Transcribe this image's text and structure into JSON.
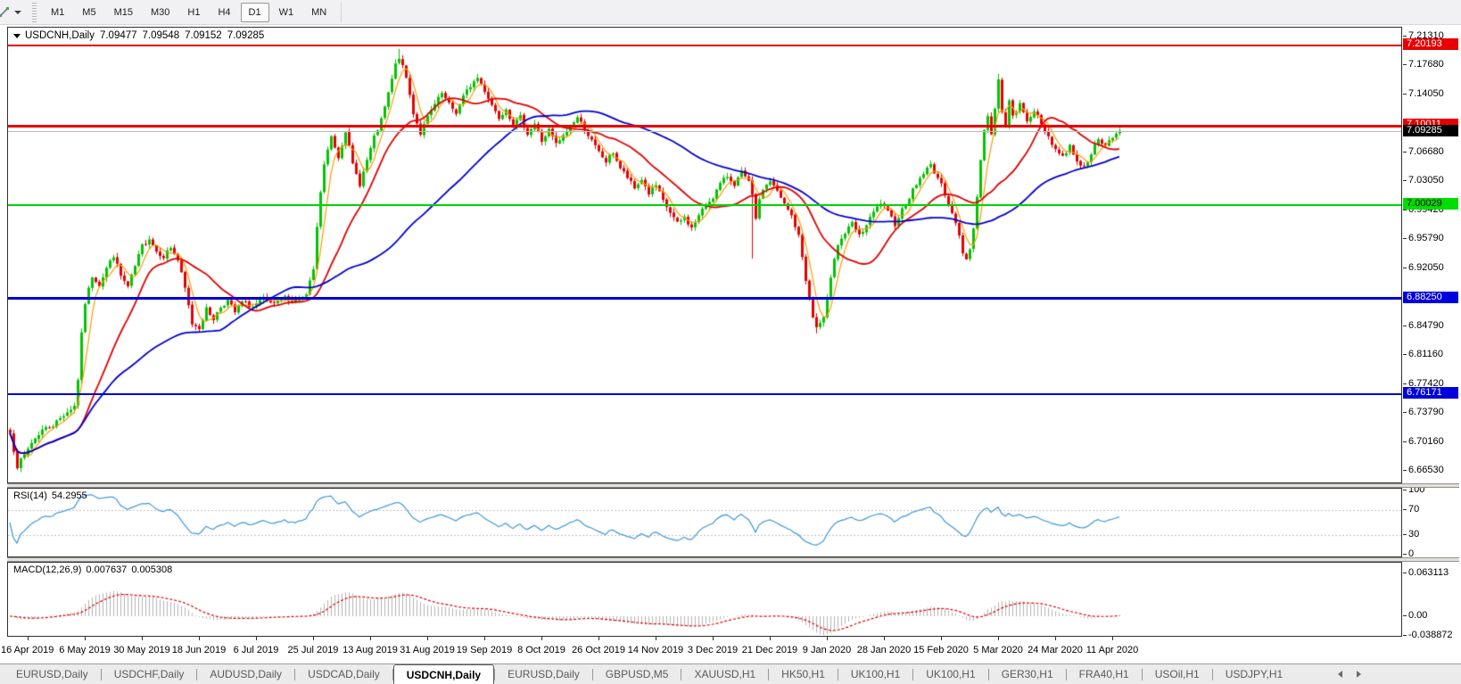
{
  "toolbar": {
    "tool_icon": "crosshair-cursor-icon",
    "timeframes": [
      "M1",
      "M5",
      "M15",
      "M30",
      "H1",
      "H4",
      "D1",
      "W1",
      "MN"
    ],
    "active_timeframe": "D1"
  },
  "chart": {
    "title": "USDCNH,Daily",
    "ohlc": {
      "open": "7.09477",
      "high": "7.09548",
      "low": "7.09152",
      "close": "7.09285"
    },
    "price_axis": {
      "min": 6.6653,
      "max": 7.2131,
      "ticks": [
        {
          "text": "7.21310",
          "value": 7.2131
        },
        {
          "text": "7.17680",
          "value": 7.1768
        },
        {
          "text": "7.14050",
          "value": 7.1405
        },
        {
          "text": "7.06680",
          "value": 7.0668
        },
        {
          "text": "7.03050",
          "value": 7.0305
        },
        {
          "text": "6.99420",
          "value": 6.9942
        },
        {
          "text": "6.95790",
          "value": 6.9579
        },
        {
          "text": "6.92050",
          "value": 6.9205
        },
        {
          "text": "6.84790",
          "value": 6.8479
        },
        {
          "text": "6.81160",
          "value": 6.8116
        },
        {
          "text": "6.77420",
          "value": 6.7742
        },
        {
          "text": "6.73790",
          "value": 6.7379
        },
        {
          "text": "6.70160",
          "value": 6.7016
        },
        {
          "text": "6.66530",
          "value": 6.6653
        }
      ],
      "badges": [
        {
          "text": "7.20193",
          "value": 7.20193,
          "bg": "#e80000",
          "fg": "#ffffff",
          "name": "resistance-badge-7.20193"
        },
        {
          "text": "7.10011",
          "value": 7.10011,
          "bg": "#e80000",
          "fg": "#ffffff",
          "name": "resistance-badge-7.10011"
        },
        {
          "text": "7.09285",
          "value": 7.09285,
          "bg": "#000000",
          "fg": "#ffffff",
          "name": "bid-price-badge"
        },
        {
          "text": "7.00029",
          "value": 7.00029,
          "bg": "#00dd00",
          "fg": "#000000",
          "name": "support-badge-7.00029"
        },
        {
          "text": "6.88250",
          "value": 6.8825,
          "bg": "#0000dd",
          "fg": "#ffffff",
          "name": "support-badge-6.88250"
        },
        {
          "text": "6.76171",
          "value": 6.76171,
          "bg": "#0000dd",
          "fg": "#ffffff",
          "name": "support-badge-6.76171"
        }
      ]
    },
    "hlines": [
      {
        "price": 7.20193,
        "color": "#e80000",
        "width": 2,
        "name": "hline-resistance-7.20193"
      },
      {
        "price": 7.10011,
        "color": "#e80000",
        "width": 3,
        "name": "hline-resistance-7.10011"
      },
      {
        "price": 7.09285,
        "color": "#b9b9b9",
        "width": 1,
        "name": "hline-bid-price"
      },
      {
        "price": 7.00029,
        "color": "#00d400",
        "width": 2,
        "name": "hline-support-7.00029"
      },
      {
        "price": 6.8825,
        "color": "#0000d8",
        "width": 3,
        "name": "hline-support-6.88250"
      },
      {
        "price": 6.76171,
        "color": "#0000d8",
        "width": 2,
        "name": "hline-support-6.76171"
      }
    ],
    "date_ticks": [
      "16 Apr 2019",
      "6 May 2019",
      "30 May 2019",
      "18 Jun 2019",
      "6 Jul 2019",
      "25 Jul 2019",
      "13 Aug 2019",
      "31 Aug 2019",
      "19 Sep 2019",
      "8 Oct 2019",
      "26 Oct 2019",
      "14 Nov 2019",
      "3 Dec 2019",
      "21 Dec 2019",
      "9 Jan 2020",
      "28 Jan 2020",
      "15 Feb 2020",
      "5 Mar 2020",
      "24 Mar 2020",
      "11 Apr 2020"
    ],
    "colors": {
      "up_candle": "#00c400",
      "down_candle": "#e60000",
      "ma_fast": "#ff9900",
      "ma_medium": "#e00000",
      "ma_slow": "#0000cc",
      "rsi_line": "#3d96dd",
      "level_dashed": "#c0c0c0",
      "macd_histogram": "#b2b2b2",
      "macd_signal": "#e00000"
    }
  },
  "chart_data": {
    "type": "candlestick",
    "symbol": "USDCNH",
    "period": "Daily",
    "bars_count": 312,
    "price_range": [
      6.6653,
      7.2131
    ],
    "close_anchors": [
      [
        0,
        6.712
      ],
      [
        2,
        6.67
      ],
      [
        4,
        6.684
      ],
      [
        6,
        6.7
      ],
      [
        9,
        6.716
      ],
      [
        12,
        6.722
      ],
      [
        15,
        6.735
      ],
      [
        18,
        6.746
      ],
      [
        19,
        6.78
      ],
      [
        20,
        6.836
      ],
      [
        21,
        6.876
      ],
      [
        23,
        6.91
      ],
      [
        25,
        6.899
      ],
      [
        27,
        6.92
      ],
      [
        29,
        6.936
      ],
      [
        31,
        6.91
      ],
      [
        33,
        6.896
      ],
      [
        35,
        6.922
      ],
      [
        37,
        6.948
      ],
      [
        39,
        6.958
      ],
      [
        41,
        6.941
      ],
      [
        43,
        6.935
      ],
      [
        45,
        6.946
      ],
      [
        47,
        6.93
      ],
      [
        49,
        6.894
      ],
      [
        51,
        6.85
      ],
      [
        53,
        6.845
      ],
      [
        55,
        6.868
      ],
      [
        57,
        6.856
      ],
      [
        59,
        6.871
      ],
      [
        61,
        6.879
      ],
      [
        63,
        6.864
      ],
      [
        65,
        6.877
      ],
      [
        68,
        6.871
      ],
      [
        71,
        6.881
      ],
      [
        74,
        6.873
      ],
      [
        77,
        6.883
      ],
      [
        80,
        6.879
      ],
      [
        83,
        6.885
      ],
      [
        85,
        6.918
      ],
      [
        86,
        6.97
      ],
      [
        87,
        7.016
      ],
      [
        88,
        7.05
      ],
      [
        90,
        7.086
      ],
      [
        92,
        7.06
      ],
      [
        94,
        7.094
      ],
      [
        96,
        7.05
      ],
      [
        98,
        7.026
      ],
      [
        100,
        7.056
      ],
      [
        102,
        7.084
      ],
      [
        104,
        7.106
      ],
      [
        106,
        7.14
      ],
      [
        108,
        7.176
      ],
      [
        109,
        7.186
      ],
      [
        111,
        7.16
      ],
      [
        113,
        7.116
      ],
      [
        115,
        7.09
      ],
      [
        117,
        7.11
      ],
      [
        119,
        7.126
      ],
      [
        121,
        7.14
      ],
      [
        123,
        7.126
      ],
      [
        125,
        7.116
      ],
      [
        127,
        7.136
      ],
      [
        129,
        7.15
      ],
      [
        131,
        7.16
      ],
      [
        133,
        7.144
      ],
      [
        135,
        7.126
      ],
      [
        137,
        7.11
      ],
      [
        139,
        7.122
      ],
      [
        141,
        7.1
      ],
      [
        143,
        7.11
      ],
      [
        145,
        7.09
      ],
      [
        147,
        7.102
      ],
      [
        149,
        7.08
      ],
      [
        151,
        7.094
      ],
      [
        153,
        7.076
      ],
      [
        155,
        7.086
      ],
      [
        157,
        7.1
      ],
      [
        159,
        7.11
      ],
      [
        161,
        7.096
      ],
      [
        163,
        7.08
      ],
      [
        165,
        7.066
      ],
      [
        167,
        7.054
      ],
      [
        169,
        7.066
      ],
      [
        171,
        7.046
      ],
      [
        173,
        7.034
      ],
      [
        175,
        7.02
      ],
      [
        177,
        7.032
      ],
      [
        179,
        7.014
      ],
      [
        181,
        7.024
      ],
      [
        183,
        7.004
      ],
      [
        185,
        6.99
      ],
      [
        187,
        6.976
      ],
      [
        189,
        6.984
      ],
      [
        191,
        6.97
      ],
      [
        193,
        6.986
      ],
      [
        195,
        7.0
      ],
      [
        197,
        7.01
      ],
      [
        199,
        7.026
      ],
      [
        201,
        7.036
      ],
      [
        203,
        7.026
      ],
      [
        205,
        7.04
      ],
      [
        207,
        7.028
      ],
      [
        208,
        7.01
      ],
      [
        209,
        6.984
      ],
      [
        210,
        7.004
      ],
      [
        211,
        7.02
      ],
      [
        213,
        7.03
      ],
      [
        215,
        7.016
      ],
      [
        217,
        7.0
      ],
      [
        219,
        6.986
      ],
      [
        221,
        6.96
      ],
      [
        222,
        6.934
      ],
      [
        223,
        6.906
      ],
      [
        224,
        6.88
      ],
      [
        225,
        6.858
      ],
      [
        226,
        6.845
      ],
      [
        228,
        6.856
      ],
      [
        229,
        6.88
      ],
      [
        230,
        6.91
      ],
      [
        231,
        6.934
      ],
      [
        232,
        6.95
      ],
      [
        234,
        6.964
      ],
      [
        236,
        6.976
      ],
      [
        238,
        6.96
      ],
      [
        240,
        6.974
      ],
      [
        242,
        6.99
      ],
      [
        244,
        7.002
      ],
      [
        246,
        6.99
      ],
      [
        248,
        6.976
      ],
      [
        250,
        6.994
      ],
      [
        252,
        7.01
      ],
      [
        254,
        7.026
      ],
      [
        256,
        7.04
      ],
      [
        258,
        7.05
      ],
      [
        260,
        7.034
      ],
      [
        262,
        7.014
      ],
      [
        264,
        6.99
      ],
      [
        266,
        6.96
      ],
      [
        267,
        6.94
      ],
      [
        268,
        6.931
      ],
      [
        269,
        6.946
      ],
      [
        270,
        6.97
      ],
      [
        271,
        7.01
      ],
      [
        272,
        7.056
      ],
      [
        273,
        7.096
      ],
      [
        274,
        7.11
      ],
      [
        275,
        7.09
      ],
      [
        276,
        7.12
      ],
      [
        277,
        7.156
      ],
      [
        278,
        7.12
      ],
      [
        279,
        7.1
      ],
      [
        280,
        7.13
      ],
      [
        281,
        7.11
      ],
      [
        283,
        7.126
      ],
      [
        285,
        7.106
      ],
      [
        287,
        7.12
      ],
      [
        289,
        7.1
      ],
      [
        291,
        7.086
      ],
      [
        293,
        7.07
      ],
      [
        295,
        7.06
      ],
      [
        297,
        7.074
      ],
      [
        299,
        7.056
      ],
      [
        301,
        7.046
      ],
      [
        303,
        7.066
      ],
      [
        305,
        7.08
      ],
      [
        307,
        7.074
      ],
      [
        309,
        7.086
      ],
      [
        311,
        7.0929
      ]
    ],
    "wick_highs": [
      [
        109,
        7.1965
      ],
      [
        277,
        7.165
      ]
    ],
    "wick_lows": [
      [
        2,
        6.6655
      ],
      [
        208,
        6.932
      ],
      [
        226,
        6.8375
      ]
    ],
    "moving_averages": [
      {
        "period": 5,
        "color": "#ff9900",
        "width": 1.2
      },
      {
        "period": 20,
        "color": "#e00000",
        "width": 1.8
      },
      {
        "period": 60,
        "color": "#0000cc",
        "width": 1.8
      }
    ],
    "horizontal_levels": [
      7.20193,
      7.10011,
      7.00029,
      6.8825,
      6.76171
    ],
    "current_bid": 7.09285
  },
  "rsi_panel": {
    "name": "RSI(14)",
    "value": "54.2955",
    "period": 14,
    "levels": [
      70,
      30
    ],
    "axis_ticks": [
      {
        "text": "100",
        "value": 100
      },
      {
        "text": "70",
        "value": 70
      },
      {
        "text": "30",
        "value": 30
      },
      {
        "text": "0",
        "value": 0
      }
    ]
  },
  "macd_panel": {
    "name": "MACD(12,26,9)",
    "values": [
      "0.007637",
      "0.005308"
    ],
    "params": [
      12,
      26,
      9
    ],
    "axis_ticks": {
      "top": "0.063113",
      "zero": "0.00",
      "bottom": "-0.038872"
    }
  },
  "tabbar": {
    "tabs": [
      "EURUSD,Daily",
      "USDCHF,Daily",
      "AUDUSD,Daily",
      "USDCAD,Daily",
      "USDCNH,Daily",
      "EURUSD,Daily",
      "GBPUSD,M5",
      "XAUUSD,H1",
      "HK50,H1",
      "UK100,H1",
      "UK100,H1",
      "GER30,H1",
      "FRA40,H1",
      "USOil,H1",
      "USDJPY,H1"
    ],
    "active_tab_index": 4
  }
}
